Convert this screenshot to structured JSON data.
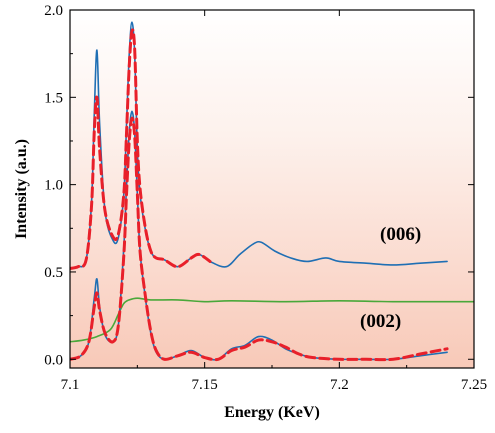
{
  "chart_data": {
    "type": "line",
    "title": "",
    "xlabel": "Energy (KeV)",
    "ylabel": "Intensity (a.u.)",
    "xlim": [
      7.1,
      7.25
    ],
    "ylim": [
      -0.05,
      2.0
    ],
    "xticks": [
      7.1,
      7.15,
      7.2,
      7.25
    ],
    "xtick_labels": [
      "7.1",
      "7.15",
      "7.2",
      "7.25"
    ],
    "yticks": [
      0.0,
      0.5,
      1.0,
      1.5,
      2.0
    ],
    "ytick_labels": [
      "0.0",
      "0.5",
      "1.0",
      "1.5",
      "2.0"
    ],
    "grid": false,
    "background": "gradient white (top) to light salmon (bottom)",
    "annotations": [
      {
        "text": "(006)",
        "x": 7.212,
        "y": 0.66
      },
      {
        "text": "(002)",
        "x": 7.202,
        "y": 0.14
      }
    ],
    "series": [
      {
        "color": "#1f6fb4",
        "style": "solid",
        "x": [
          7.1,
          7.103,
          7.106,
          7.108,
          7.109,
          7.11,
          7.111,
          7.113,
          7.116,
          7.118,
          7.12,
          7.121,
          7.122,
          7.123,
          7.124,
          7.125,
          7.126,
          7.128,
          7.13,
          7.132,
          7.135,
          7.14,
          7.145,
          7.148,
          7.152,
          7.158,
          7.163,
          7.168,
          7.171,
          7.176,
          7.182,
          7.188,
          7.195,
          7.2,
          7.21,
          7.22,
          7.23,
          7.24
        ],
        "y": [
          0.52,
          0.53,
          0.57,
          0.9,
          1.4,
          1.77,
          1.35,
          0.85,
          0.68,
          0.7,
          0.95,
          1.35,
          1.75,
          1.93,
          1.75,
          1.2,
          0.95,
          0.74,
          0.62,
          0.58,
          0.57,
          0.53,
          0.58,
          0.6,
          0.56,
          0.53,
          0.6,
          0.66,
          0.67,
          0.62,
          0.58,
          0.56,
          0.58,
          0.56,
          0.55,
          0.54,
          0.55,
          0.56
        ]
      },
      {
        "color": "#e8202a",
        "style": "dashed",
        "x": [
          7.1,
          7.103,
          7.106,
          7.108,
          7.109,
          7.11,
          7.111,
          7.113,
          7.116,
          7.118,
          7.12,
          7.121,
          7.122,
          7.123,
          7.124,
          7.125,
          7.126,
          7.128,
          7.13,
          7.132,
          7.135,
          7.14,
          7.145,
          7.148,
          7.152
        ],
        "y": [
          0.52,
          0.53,
          0.57,
          0.88,
          1.3,
          1.5,
          1.2,
          0.85,
          0.7,
          0.72,
          0.95,
          1.3,
          1.68,
          1.88,
          1.78,
          1.25,
          0.98,
          0.75,
          0.62,
          0.58,
          0.57,
          0.53,
          0.58,
          0.6,
          0.56
        ]
      },
      {
        "color": "#1f6fb4",
        "style": "solid",
        "x": [
          7.1,
          7.104,
          7.107,
          7.109,
          7.11,
          7.111,
          7.113,
          7.116,
          7.118,
          7.12,
          7.121,
          7.122,
          7.123,
          7.124,
          7.125,
          7.126,
          7.128,
          7.13,
          7.132,
          7.135,
          7.14,
          7.145,
          7.15,
          7.155,
          7.16,
          7.165,
          7.17,
          7.175,
          7.18,
          7.185,
          7.19,
          7.2,
          7.21,
          7.22,
          7.23,
          7.24
        ],
        "y": [
          0.0,
          0.02,
          0.1,
          0.35,
          0.46,
          0.3,
          0.14,
          0.1,
          0.2,
          0.65,
          1.0,
          1.3,
          1.42,
          1.3,
          0.95,
          0.62,
          0.35,
          0.15,
          0.04,
          0.0,
          0.02,
          0.05,
          0.01,
          0.0,
          0.06,
          0.08,
          0.13,
          0.11,
          0.06,
          0.03,
          0.01,
          0.0,
          0.0,
          0.0,
          0.02,
          0.04
        ]
      },
      {
        "color": "#e8202a",
        "style": "dashed",
        "x": [
          7.1,
          7.104,
          7.107,
          7.109,
          7.11,
          7.111,
          7.113,
          7.116,
          7.118,
          7.12,
          7.121,
          7.122,
          7.123,
          7.124,
          7.125,
          7.126,
          7.128,
          7.13,
          7.132,
          7.135,
          7.14,
          7.145,
          7.15,
          7.155,
          7.16,
          7.165,
          7.17,
          7.175,
          7.18,
          7.185,
          7.19,
          7.2,
          7.21,
          7.22,
          7.23,
          7.24
        ],
        "y": [
          0.0,
          0.02,
          0.1,
          0.3,
          0.38,
          0.28,
          0.15,
          0.1,
          0.2,
          0.6,
          0.95,
          1.25,
          1.38,
          1.28,
          0.95,
          0.62,
          0.36,
          0.16,
          0.05,
          0.0,
          0.02,
          0.04,
          0.01,
          0.0,
          0.05,
          0.07,
          0.11,
          0.1,
          0.07,
          0.03,
          0.01,
          0.0,
          0.0,
          0.0,
          0.03,
          0.06
        ]
      },
      {
        "color": "#4aa83a",
        "style": "solid",
        "x": [
          7.1,
          7.105,
          7.11,
          7.115,
          7.118,
          7.12,
          7.122,
          7.125,
          7.13,
          7.14,
          7.15,
          7.16,
          7.18,
          7.2,
          7.22,
          7.25
        ],
        "y": [
          0.1,
          0.11,
          0.13,
          0.17,
          0.26,
          0.32,
          0.34,
          0.35,
          0.34,
          0.34,
          0.33,
          0.335,
          0.33,
          0.335,
          0.33,
          0.33
        ]
      }
    ]
  }
}
